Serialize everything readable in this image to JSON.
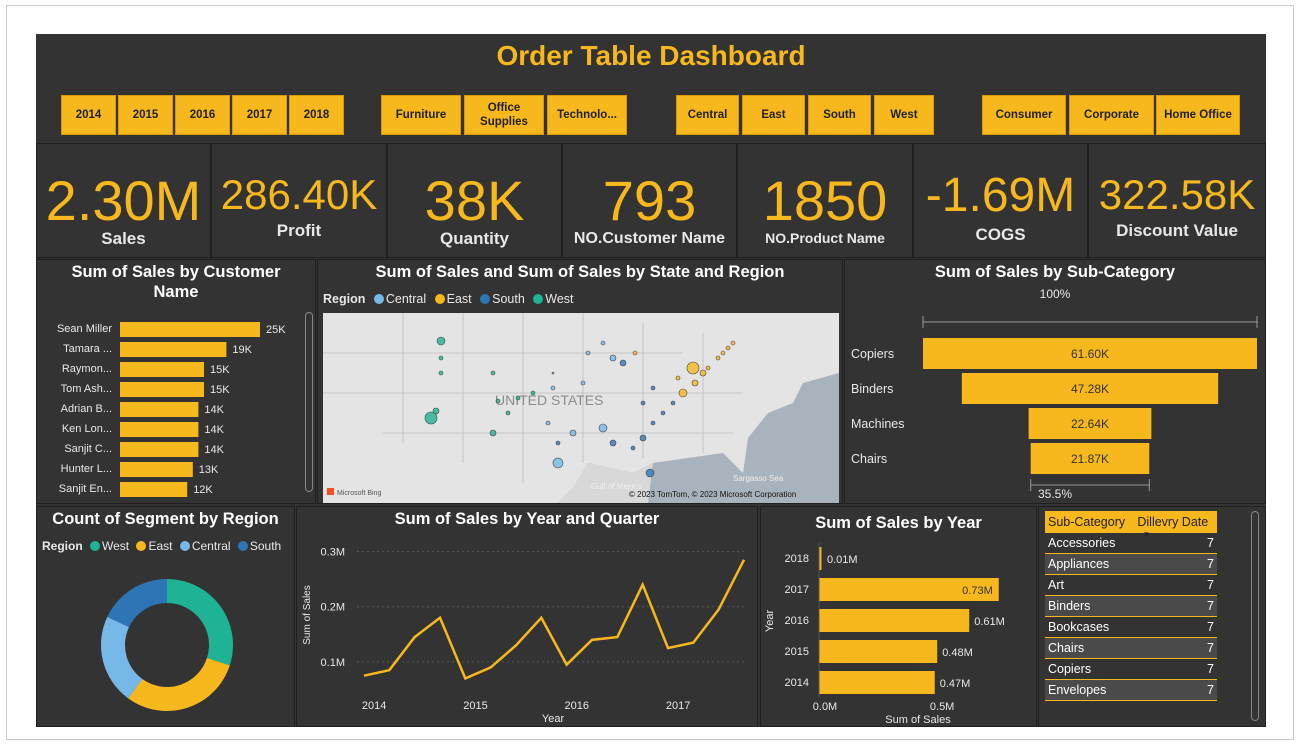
{
  "title": "Order Table Dashboard",
  "slicers": {
    "years": [
      "2014",
      "2015",
      "2016",
      "2017",
      "2018"
    ],
    "categories": [
      "Furniture",
      "Office Supplies",
      "Technolo..."
    ],
    "regions": [
      "Central",
      "East",
      "South",
      "West"
    ],
    "segments": [
      "Consumer",
      "Corporate",
      "Home Office"
    ]
  },
  "kpis": [
    {
      "value": "2.30M",
      "label": "Sales"
    },
    {
      "value": "286.40K",
      "label": "Profit"
    },
    {
      "value": "38K",
      "label": "Quantity"
    },
    {
      "value": "793",
      "label": "NO.Customer Name"
    },
    {
      "value": "1850",
      "label": "NO.Product Name"
    },
    {
      "value": "-1.69M",
      "label": "COGS"
    },
    {
      "value": "322.58K",
      "label": "Discount Value"
    }
  ],
  "colors": {
    "accent": "#F7B81E",
    "background": "#333333",
    "central": "#76B8E8",
    "east": "#F7B81E",
    "south": "#2E75B6",
    "west": "#1DB394"
  },
  "customer_chart": {
    "title": "Sum of Sales by Customer Name",
    "chart_data": {
      "type": "bar",
      "orientation": "horizontal",
      "categories": [
        "Sean Miller",
        "Tamara ...",
        "Raymon...",
        "Tom Ash...",
        "Adrian B...",
        "Ken Lon...",
        "Sanjit C...",
        "Hunter L...",
        "Sanjit En..."
      ],
      "values": [
        25000,
        19000,
        15000,
        15000,
        14000,
        14000,
        14000,
        13000,
        12000
      ],
      "labels": [
        "25K",
        "19K",
        "15K",
        "15K",
        "14K",
        "14K",
        "14K",
        "13K",
        "12K"
      ]
    }
  },
  "map": {
    "title": "Sum of Sales and Sum of Sales by State and Region",
    "legend_title": "Region",
    "legend": [
      "Central",
      "East",
      "South",
      "West"
    ],
    "country_label": "UNITED STATES",
    "bing": "Microsoft Bing",
    "gulf": "Gulf of Mexico",
    "sargasso": "Sargasso Sea",
    "copyright": "© 2023 TomTom, © 2023 Microsoft Corporation"
  },
  "subcategory_chart": {
    "title": "Sum of Sales by Sub-Category",
    "top_pct": "100%",
    "bottom_pct": "35.5%",
    "chart_data": {
      "type": "bar",
      "style": "funnel",
      "categories": [
        "Copiers",
        "Binders",
        "Machines",
        "Chairs"
      ],
      "values": [
        61600,
        47280,
        22640,
        21870
      ],
      "labels": [
        "61.60K",
        "47.28K",
        "22.64K",
        "21.87K"
      ]
    }
  },
  "segment_chart": {
    "title": "Count of Segment by Region",
    "legend_title": "Region",
    "legend": [
      "West",
      "East",
      "Central",
      "South"
    ],
    "chart_data": {
      "type": "pie",
      "style": "donut",
      "categories": [
        "West",
        "East",
        "Central",
        "South"
      ],
      "values": [
        30,
        30,
        22,
        18
      ]
    }
  },
  "quarter_chart": {
    "title": "Sum of Sales by Year and Quarter",
    "ylabel": "Sum of Sales",
    "xlabel": "Year",
    "y_ticks": [
      "0.3M",
      "0.2M",
      "0.1M"
    ],
    "x_ticks": [
      "2014",
      "2015",
      "2016",
      "2017"
    ],
    "chart_data": {
      "type": "line",
      "x": [
        "2014 Q1",
        "2014 Q2",
        "2014 Q3",
        "2014 Q4",
        "2015 Q1",
        "2015 Q2",
        "2015 Q3",
        "2015 Q4",
        "2016 Q1",
        "2016 Q2",
        "2016 Q3",
        "2016 Q4",
        "2017 Q1",
        "2017 Q2",
        "2017 Q3",
        "2017 Q4"
      ],
      "values": [
        0.075,
        0.085,
        0.145,
        0.18,
        0.07,
        0.09,
        0.13,
        0.18,
        0.095,
        0.14,
        0.145,
        0.24,
        0.125,
        0.135,
        0.195,
        0.285
      ],
      "ylim": [
        0.04,
        0.33
      ]
    }
  },
  "year_chart": {
    "title": "Sum of Sales by Year",
    "ylabel": "Year",
    "xlabel": "Sum of Sales",
    "x_ticks": [
      "0.0M",
      "0.5M"
    ],
    "chart_data": {
      "type": "bar",
      "orientation": "horizontal",
      "categories": [
        "2018",
        "2017",
        "2016",
        "2015",
        "2014"
      ],
      "values": [
        0.01,
        0.73,
        0.61,
        0.48,
        0.47
      ],
      "labels": [
        "0.01M",
        "0.73M",
        "0.61M",
        "0.48M",
        "0.47M"
      ],
      "xlim": [
        0,
        0.8
      ]
    }
  },
  "subcat_table": {
    "col1": "Sub-Category",
    "col2": "Dillevry Date",
    "rows": [
      {
        "name": "Accessories",
        "value": "7"
      },
      {
        "name": "Appliances",
        "value": "7"
      },
      {
        "name": "Art",
        "value": "7"
      },
      {
        "name": "Binders",
        "value": "7"
      },
      {
        "name": "Bookcases",
        "value": "7"
      },
      {
        "name": "Chairs",
        "value": "7"
      },
      {
        "name": "Copiers",
        "value": "7"
      },
      {
        "name": "Envelopes",
        "value": "7"
      }
    ]
  }
}
